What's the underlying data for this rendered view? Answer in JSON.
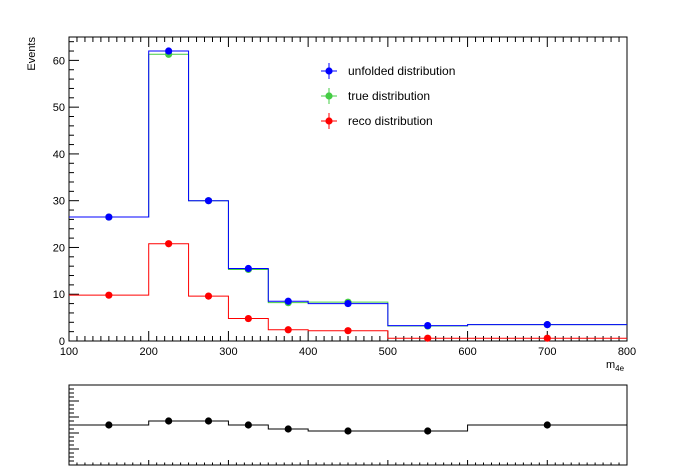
{
  "chart_data": [
    {
      "type": "line",
      "step": true,
      "xlabel": "m",
      "xlabel_sub": "4e",
      "ylabel": "Events",
      "xlim": [
        100,
        800
      ],
      "ylim": [
        0,
        65
      ],
      "x_ticks": [
        100,
        200,
        300,
        400,
        500,
        600,
        700,
        800
      ],
      "y_ticks": [
        0,
        10,
        20,
        30,
        40,
        50,
        60
      ],
      "bin_edges": [
        100,
        200,
        250,
        300,
        350,
        400,
        500,
        600,
        800
      ],
      "legend_position": "top-right",
      "series": [
        {
          "name": "unfolded distribution",
          "color": "#0000ff",
          "x": [
            150,
            225,
            275,
            325,
            375,
            450,
            550,
            700
          ],
          "values": [
            26.5,
            62.0,
            30.0,
            15.5,
            8.5,
            8.0,
            3.3,
            3.5
          ]
        },
        {
          "name": "true distribution",
          "color": "#44cc44",
          "x": [
            150,
            225,
            275,
            325,
            375,
            450,
            550,
            700
          ],
          "values": [
            26.5,
            61.3,
            30.0,
            15.3,
            8.2,
            8.3,
            3.2,
            3.5
          ]
        },
        {
          "name": "reco distribution",
          "color": "#ff0000",
          "x": [
            150,
            225,
            275,
            325,
            375,
            450,
            550,
            700
          ],
          "values": [
            9.8,
            20.8,
            9.6,
            4.8,
            2.4,
            2.2,
            0.6,
            0.6
          ]
        }
      ]
    },
    {
      "type": "line",
      "step": true,
      "title": "",
      "xlim": [
        100,
        800
      ],
      "ylim": [
        0.9,
        1.1
      ],
      "bin_edges": [
        100,
        200,
        250,
        300,
        350,
        400,
        500,
        600,
        800
      ],
      "series": [
        {
          "color": "#000000",
          "x": [
            150,
            225,
            275,
            325,
            375,
            450,
            550,
            700
          ],
          "values": [
            1.0,
            1.01,
            1.01,
            1.0,
            0.99,
            0.985,
            0.985,
            1.0
          ]
        }
      ]
    }
  ]
}
